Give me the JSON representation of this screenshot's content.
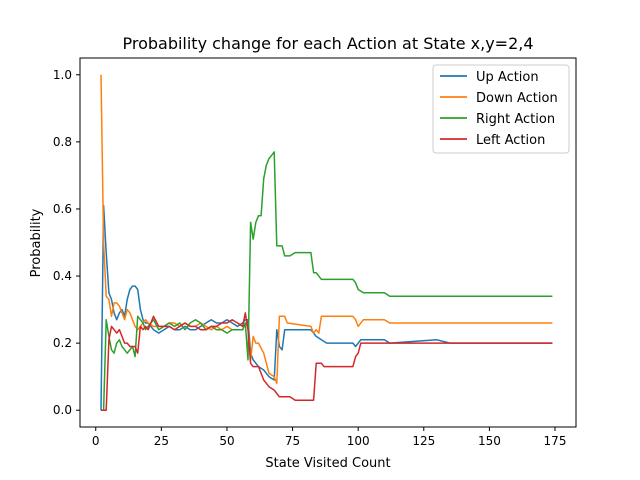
{
  "chart_data": {
    "type": "line",
    "title": "Probability change for each Action at State x,y=2,4",
    "xlabel": "State Visited Count",
    "ylabel": "Probability",
    "xlim": [
      -6,
      183
    ],
    "ylim": [
      -0.05,
      1.05
    ],
    "xticks": [
      0,
      25,
      50,
      75,
      100,
      125,
      150,
      175
    ],
    "yticks": [
      0.0,
      0.2,
      0.4,
      0.6,
      0.8,
      1.0
    ],
    "xtick_labels": [
      "0",
      "25",
      "50",
      "75",
      "100",
      "125",
      "150",
      "175"
    ],
    "ytick_labels": [
      "0.0",
      "0.2",
      "0.4",
      "0.6",
      "0.8",
      "1.0"
    ],
    "legend_position": "top-right",
    "grid": false,
    "series": [
      {
        "name": "Up Action",
        "color": "#1f77b4",
        "points": [
          [
            2,
            0.0
          ],
          [
            3,
            0.61
          ],
          [
            4,
            0.47
          ],
          [
            5,
            0.35
          ],
          [
            6,
            0.33
          ],
          [
            7,
            0.29
          ],
          [
            8,
            0.27
          ],
          [
            9,
            0.29
          ],
          [
            10,
            0.3
          ],
          [
            11,
            0.28
          ],
          [
            12,
            0.33
          ],
          [
            13,
            0.36
          ],
          [
            14,
            0.37
          ],
          [
            15,
            0.37
          ],
          [
            16,
            0.36
          ],
          [
            17,
            0.3
          ],
          [
            18,
            0.27
          ],
          [
            19,
            0.26
          ],
          [
            20,
            0.26
          ],
          [
            22,
            0.24
          ],
          [
            24,
            0.23
          ],
          [
            26,
            0.24
          ],
          [
            28,
            0.25
          ],
          [
            30,
            0.24
          ],
          [
            32,
            0.24
          ],
          [
            34,
            0.25
          ],
          [
            36,
            0.24
          ],
          [
            38,
            0.24
          ],
          [
            40,
            0.25
          ],
          [
            42,
            0.26
          ],
          [
            44,
            0.27
          ],
          [
            46,
            0.26
          ],
          [
            48,
            0.26
          ],
          [
            50,
            0.27
          ],
          [
            52,
            0.26
          ],
          [
            54,
            0.25
          ],
          [
            56,
            0.26
          ],
          [
            57,
            0.27
          ],
          [
            58,
            0.27
          ],
          [
            59,
            0.17
          ],
          [
            60,
            0.15
          ],
          [
            62,
            0.13
          ],
          [
            64,
            0.12
          ],
          [
            66,
            0.1
          ],
          [
            68,
            0.09
          ],
          [
            69,
            0.24
          ],
          [
            70,
            0.19
          ],
          [
            71,
            0.18
          ],
          [
            72,
            0.24
          ],
          [
            80,
            0.24
          ],
          [
            82,
            0.24
          ],
          [
            83,
            0.23
          ],
          [
            84,
            0.22
          ],
          [
            86,
            0.21
          ],
          [
            88,
            0.2
          ],
          [
            98,
            0.2
          ],
          [
            99,
            0.19
          ],
          [
            100,
            0.2
          ],
          [
            101,
            0.21
          ],
          [
            102,
            0.21
          ],
          [
            110,
            0.21
          ],
          [
            112,
            0.2
          ],
          [
            130,
            0.21
          ],
          [
            135,
            0.2
          ],
          [
            174,
            0.2
          ]
        ]
      },
      {
        "name": "Down Action",
        "color": "#ff7f0e",
        "points": [
          [
            2,
            1.0
          ],
          [
            3,
            0.5
          ],
          [
            4,
            0.34
          ],
          [
            5,
            0.33
          ],
          [
            6,
            0.28
          ],
          [
            7,
            0.32
          ],
          [
            8,
            0.32
          ],
          [
            9,
            0.31
          ],
          [
            10,
            0.29
          ],
          [
            11,
            0.27
          ],
          [
            12,
            0.3
          ],
          [
            13,
            0.29
          ],
          [
            14,
            0.27
          ],
          [
            15,
            0.25
          ],
          [
            16,
            0.24
          ],
          [
            17,
            0.25
          ],
          [
            18,
            0.26
          ],
          [
            19,
            0.27
          ],
          [
            20,
            0.26
          ],
          [
            22,
            0.25
          ],
          [
            24,
            0.25
          ],
          [
            26,
            0.25
          ],
          [
            28,
            0.26
          ],
          [
            30,
            0.26
          ],
          [
            32,
            0.25
          ],
          [
            34,
            0.26
          ],
          [
            36,
            0.25
          ],
          [
            38,
            0.25
          ],
          [
            40,
            0.26
          ],
          [
            42,
            0.25
          ],
          [
            44,
            0.24
          ],
          [
            46,
            0.25
          ],
          [
            48,
            0.24
          ],
          [
            50,
            0.25
          ],
          [
            52,
            0.24
          ],
          [
            54,
            0.24
          ],
          [
            56,
            0.24
          ],
          [
            57,
            0.26
          ],
          [
            58,
            0.25
          ],
          [
            59,
            0.15
          ],
          [
            60,
            0.22
          ],
          [
            61,
            0.2
          ],
          [
            62,
            0.2
          ],
          [
            64,
            0.17
          ],
          [
            66,
            0.11
          ],
          [
            68,
            0.1
          ],
          [
            69,
            0.08
          ],
          [
            70,
            0.28
          ],
          [
            72,
            0.28
          ],
          [
            73,
            0.26
          ],
          [
            82,
            0.25
          ],
          [
            83,
            0.23
          ],
          [
            84,
            0.24
          ],
          [
            85,
            0.23
          ],
          [
            86,
            0.28
          ],
          [
            98,
            0.28
          ],
          [
            99,
            0.27
          ],
          [
            100,
            0.25
          ],
          [
            102,
            0.27
          ],
          [
            110,
            0.27
          ],
          [
            112,
            0.26
          ],
          [
            130,
            0.26
          ],
          [
            135,
            0.26
          ],
          [
            174,
            0.26
          ]
        ]
      },
      {
        "name": "Right Action",
        "color": "#2ca02c",
        "points": [
          [
            2,
            0.0
          ],
          [
            3,
            0.0
          ],
          [
            4,
            0.27
          ],
          [
            5,
            0.22
          ],
          [
            6,
            0.18
          ],
          [
            7,
            0.17
          ],
          [
            8,
            0.2
          ],
          [
            9,
            0.21
          ],
          [
            10,
            0.19
          ],
          [
            11,
            0.18
          ],
          [
            12,
            0.17
          ],
          [
            14,
            0.19
          ],
          [
            15,
            0.16
          ],
          [
            16,
            0.28
          ],
          [
            17,
            0.27
          ],
          [
            18,
            0.26
          ],
          [
            19,
            0.24
          ],
          [
            20,
            0.25
          ],
          [
            22,
            0.27
          ],
          [
            24,
            0.24
          ],
          [
            26,
            0.25
          ],
          [
            28,
            0.26
          ],
          [
            30,
            0.25
          ],
          [
            32,
            0.26
          ],
          [
            34,
            0.24
          ],
          [
            36,
            0.26
          ],
          [
            38,
            0.27
          ],
          [
            40,
            0.26
          ],
          [
            42,
            0.24
          ],
          [
            44,
            0.25
          ],
          [
            46,
            0.24
          ],
          [
            48,
            0.24
          ],
          [
            50,
            0.23
          ],
          [
            52,
            0.24
          ],
          [
            54,
            0.24
          ],
          [
            56,
            0.24
          ],
          [
            57,
            0.26
          ],
          [
            58,
            0.15
          ],
          [
            59,
            0.56
          ],
          [
            60,
            0.51
          ],
          [
            61,
            0.56
          ],
          [
            62,
            0.58
          ],
          [
            63,
            0.58
          ],
          [
            64,
            0.69
          ],
          [
            65,
            0.73
          ],
          [
            66,
            0.75
          ],
          [
            67,
            0.76
          ],
          [
            68,
            0.77
          ],
          [
            69,
            0.49
          ],
          [
            70,
            0.49
          ],
          [
            71,
            0.49
          ],
          [
            72,
            0.46
          ],
          [
            74,
            0.46
          ],
          [
            76,
            0.47
          ],
          [
            80,
            0.47
          ],
          [
            82,
            0.47
          ],
          [
            83,
            0.41
          ],
          [
            84,
            0.41
          ],
          [
            86,
            0.39
          ],
          [
            90,
            0.39
          ],
          [
            98,
            0.39
          ],
          [
            99,
            0.38
          ],
          [
            100,
            0.36
          ],
          [
            102,
            0.35
          ],
          [
            110,
            0.35
          ],
          [
            112,
            0.34
          ],
          [
            130,
            0.34
          ],
          [
            135,
            0.34
          ],
          [
            174,
            0.34
          ]
        ]
      },
      {
        "name": "Left Action",
        "color": "#d62728",
        "points": [
          [
            2,
            0.0
          ],
          [
            3,
            0.0
          ],
          [
            4,
            0.0
          ],
          [
            5,
            0.21
          ],
          [
            6,
            0.25
          ],
          [
            7,
            0.24
          ],
          [
            8,
            0.23
          ],
          [
            9,
            0.24
          ],
          [
            10,
            0.22
          ],
          [
            11,
            0.2
          ],
          [
            12,
            0.2
          ],
          [
            13,
            0.19
          ],
          [
            14,
            0.19
          ],
          [
            15,
            0.19
          ],
          [
            16,
            0.17
          ],
          [
            17,
            0.25
          ],
          [
            18,
            0.24
          ],
          [
            19,
            0.25
          ],
          [
            20,
            0.24
          ],
          [
            22,
            0.28
          ],
          [
            24,
            0.25
          ],
          [
            26,
            0.25
          ],
          [
            28,
            0.25
          ],
          [
            30,
            0.24
          ],
          [
            32,
            0.25
          ],
          [
            34,
            0.26
          ],
          [
            36,
            0.25
          ],
          [
            38,
            0.25
          ],
          [
            40,
            0.24
          ],
          [
            42,
            0.24
          ],
          [
            44,
            0.25
          ],
          [
            46,
            0.25
          ],
          [
            48,
            0.26
          ],
          [
            50,
            0.26
          ],
          [
            52,
            0.27
          ],
          [
            54,
            0.26
          ],
          [
            56,
            0.25
          ],
          [
            57,
            0.29
          ],
          [
            58,
            0.24
          ],
          [
            59,
            0.14
          ],
          [
            60,
            0.13
          ],
          [
            62,
            0.13
          ],
          [
            64,
            0.09
          ],
          [
            66,
            0.07
          ],
          [
            68,
            0.06
          ],
          [
            69,
            0.05
          ],
          [
            70,
            0.04
          ],
          [
            72,
            0.04
          ],
          [
            74,
            0.04
          ],
          [
            76,
            0.03
          ],
          [
            80,
            0.03
          ],
          [
            83,
            0.03
          ],
          [
            84,
            0.14
          ],
          [
            86,
            0.14
          ],
          [
            87,
            0.13
          ],
          [
            88,
            0.13
          ],
          [
            98,
            0.13
          ],
          [
            99,
            0.16
          ],
          [
            100,
            0.17
          ],
          [
            101,
            0.2
          ],
          [
            110,
            0.2
          ],
          [
            130,
            0.2
          ],
          [
            135,
            0.2
          ],
          [
            174,
            0.2
          ]
        ]
      }
    ]
  }
}
